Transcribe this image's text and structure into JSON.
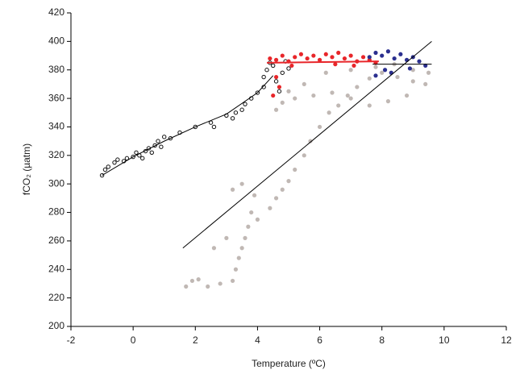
{
  "chart_data": {
    "type": "scatter",
    "x_label": "Temperature (ºC)",
    "y_label": "fCO₂ (µatm)",
    "xlim": [
      -2,
      12
    ],
    "xticks": [
      -2,
      0,
      2,
      4,
      6,
      8,
      10,
      12
    ],
    "ylim": [
      200,
      420
    ],
    "yticks": [
      200,
      220,
      240,
      260,
      280,
      300,
      320,
      340,
      360,
      380,
      400,
      420
    ],
    "series": [
      {
        "marker": "filled",
        "color": "#c0b8b4",
        "x": [
          1.7,
          1.9,
          2.1,
          2.4,
          2.8,
          3.2,
          3.3,
          3.4,
          3.5,
          3.6,
          3.7,
          3.8,
          3.9,
          3.2,
          3.5,
          4.4,
          4.6,
          4.8,
          5.0,
          5.2,
          5.5,
          5.7,
          6.0,
          6.3,
          6.6,
          6.9,
          7.2,
          7.6,
          8.0,
          8.5,
          9.0,
          9.5,
          9.4,
          8.8,
          8.2,
          7.6,
          7.0,
          6.4,
          5.8,
          5.2,
          4.8,
          5.0,
          5.5,
          6.2,
          7.0,
          7.8,
          8.4,
          9.0,
          4.6,
          3.0,
          2.6,
          4.0
        ],
        "values": [
          228,
          232,
          233,
          228,
          230,
          232,
          240,
          248,
          255,
          262,
          270,
          280,
          292,
          296,
          300,
          283,
          290,
          296,
          302,
          310,
          320,
          330,
          340,
          350,
          355,
          362,
          368,
          374,
          378,
          375,
          372,
          378,
          370,
          362,
          358,
          355,
          360,
          364,
          362,
          360,
          357,
          365,
          370,
          378,
          380,
          382,
          384,
          380,
          352,
          262,
          255,
          275
        ]
      },
      {
        "marker": "open",
        "color": "#111111",
        "x": [
          -1,
          -0.9,
          -0.8,
          -0.6,
          -0.5,
          -0.3,
          -0.2,
          0,
          0.1,
          0.2,
          0.3,
          0.4,
          0.5,
          0.6,
          0.7,
          0.8,
          0.9,
          1.0,
          1.2,
          1.5,
          2.0,
          2.5,
          2.6,
          3.0,
          3.2,
          3.3,
          3.5,
          3.6,
          3.8,
          4.0,
          4.2,
          4.2,
          4.3,
          4.5,
          4.6,
          4.7,
          4.8,
          5.0,
          4.9,
          4.4
        ],
        "values": [
          306,
          310,
          312,
          315,
          317,
          316,
          318,
          319,
          322,
          320,
          318,
          323,
          325,
          322,
          327,
          330,
          326,
          333,
          332,
          336,
          340,
          343,
          340,
          348,
          346,
          350,
          352,
          356,
          360,
          364,
          368,
          375,
          380,
          383,
          372,
          365,
          378,
          381,
          386,
          385
        ]
      },
      {
        "marker": "filled",
        "color": "#e8262a",
        "x": [
          4.4,
          4.6,
          4.8,
          5.0,
          5.2,
          5.4,
          5.6,
          5.8,
          6.0,
          6.2,
          6.4,
          6.6,
          6.8,
          7.0,
          7.2,
          7.4,
          7.6,
          7.8,
          4.6,
          4.7,
          4.5,
          5.1,
          6.5,
          7.1
        ],
        "values": [
          388,
          387,
          390,
          386,
          389,
          391,
          388,
          390,
          387,
          391,
          389,
          392,
          388,
          390,
          386,
          389,
          387,
          385,
          375,
          368,
          362,
          383,
          384,
          383
        ]
      },
      {
        "marker": "filled",
        "color": "#2b2f8f",
        "x": [
          7.6,
          7.8,
          8.0,
          8.2,
          8.4,
          8.6,
          8.8,
          9.0,
          9.2,
          9.4,
          8.1,
          7.8,
          8.3,
          8.9
        ],
        "values": [
          389,
          392,
          390,
          393,
          388,
          391,
          387,
          389,
          386,
          383,
          380,
          376,
          378,
          381
        ]
      },
      {
        "marker": "line",
        "color": "#000000",
        "x": [
          -1,
          0,
          1,
          2,
          3,
          4,
          4.5
        ],
        "values": [
          306,
          319,
          330,
          340,
          349,
          364,
          376
        ]
      },
      {
        "marker": "line",
        "color": "#e8262a",
        "x": [
          4.3,
          7.9
        ],
        "values": [
          385,
          386
        ]
      },
      {
        "marker": "line",
        "color": "#000000",
        "x": [
          7.7,
          9.6
        ],
        "values": [
          384,
          384
        ]
      },
      {
        "marker": "line",
        "color": "#000000",
        "x": [
          1.6,
          9.6
        ],
        "values": [
          255,
          400
        ]
      }
    ]
  }
}
